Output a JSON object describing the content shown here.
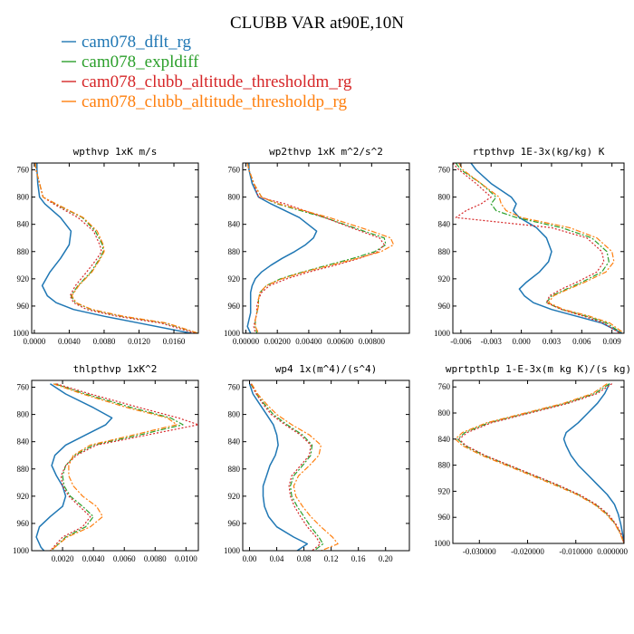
{
  "figure": {
    "title": "CLUBB VAR at90E,10N"
  },
  "colors": {
    "dflt": "#1f77b4",
    "expldiff": "#2ca02c",
    "threshm": "#d62728",
    "threshp": "#ff7f0e"
  },
  "legend": [
    {
      "name": "cam078_dflt_rg",
      "color": "#1f77b4",
      "dash": "solid"
    },
    {
      "name": "cam078_expldiff",
      "color": "#2ca02c",
      "dash": "dashdot"
    },
    {
      "name": "cam078_clubb_altitude_thresholdm_rg",
      "color": "#d62728",
      "dash": "dotted"
    },
    {
      "name": "cam078_clubb_altitude_thresholdp_rg",
      "color": "#ff7f0e",
      "dash": "dashdot"
    }
  ],
  "chart_data": [
    {
      "type": "line",
      "title": "wpthvp  1xK m/s",
      "xlim": [
        -0.0003,
        0.0188
      ],
      "ylim": [
        1000,
        750
      ],
      "y_ticks": [
        "760",
        "800",
        "840",
        "880",
        "920",
        "960",
        "1000"
      ],
      "x_ticks": [
        "0.0000",
        "0.0040",
        "0.0080",
        "0.0120",
        "0.0160"
      ],
      "levels": [
        750,
        760,
        780,
        800,
        810,
        830,
        850,
        870,
        880,
        890,
        910,
        930,
        945,
        955,
        965,
        975,
        985,
        1000
      ],
      "series": [
        {
          "name": "cam078_dflt_rg",
          "values": [
            0.0003,
            0.0003,
            0.0004,
            0.0006,
            0.0012,
            0.003,
            0.0042,
            0.004,
            0.0035,
            0.003,
            0.0018,
            0.0009,
            0.0015,
            0.0025,
            0.0045,
            0.008,
            0.012,
            0.018
          ]
        },
        {
          "name": "cam078_expldiff",
          "values": [
            0.0001,
            0.0002,
            0.0006,
            0.001,
            0.0024,
            0.0055,
            0.007,
            0.0078,
            0.0079,
            0.0075,
            0.0065,
            0.005,
            0.0042,
            0.0047,
            0.0065,
            0.01,
            0.015,
            0.0188
          ]
        },
        {
          "name": "cam078_clubb_altitude_thresholdm_rg",
          "values": [
            0.0001,
            0.0002,
            0.0006,
            0.001,
            0.0022,
            0.005,
            0.0068,
            0.0075,
            0.0077,
            0.0072,
            0.006,
            0.0047,
            0.0041,
            0.0045,
            0.006,
            0.0095,
            0.0145,
            0.0185
          ]
        },
        {
          "name": "cam078_clubb_altitude_thresholdp_rg",
          "values": [
            0.0001,
            0.0002,
            0.0006,
            0.001,
            0.0025,
            0.0056,
            0.0072,
            0.0079,
            0.008,
            0.0076,
            0.0066,
            0.0051,
            0.0043,
            0.0048,
            0.0066,
            0.0102,
            0.0152,
            0.0188
          ]
        }
      ]
    },
    {
      "type": "line",
      "title": "wp2thvp  1xK m^2/s^2",
      "xlim": [
        -0.0002,
        0.0104
      ],
      "ylim": [
        1000,
        750
      ],
      "y_ticks": [
        "760",
        "800",
        "840",
        "880",
        "920",
        "960",
        "1000"
      ],
      "x_ticks": [
        "0.00000",
        "0.00200",
        "0.00400",
        "0.00600",
        "0.00800"
      ],
      "levels": [
        750,
        760,
        780,
        800,
        810,
        830,
        850,
        860,
        870,
        880,
        890,
        900,
        910,
        920,
        930,
        940,
        950,
        960,
        970,
        980,
        990,
        1000
      ],
      "series": [
        {
          "name": "cam078_dflt_rg",
          "values": [
            0.0002,
            0.0002,
            0.0004,
            0.0008,
            0.0016,
            0.0034,
            0.0045,
            0.0043,
            0.0038,
            0.0031,
            0.0023,
            0.0016,
            0.001,
            0.0006,
            0.0004,
            0.0003,
            0.0003,
            0.0003,
            0.0003,
            0.0002,
            0.0001,
            0.0003
          ]
        },
        {
          "name": "cam078_expldiff",
          "values": [
            0.0001,
            0.0002,
            0.0005,
            0.001,
            0.002,
            0.005,
            0.0075,
            0.0088,
            0.0089,
            0.0082,
            0.0068,
            0.0052,
            0.0036,
            0.0022,
            0.0013,
            0.0009,
            0.0008,
            0.0008,
            0.0007,
            0.0006,
            0.0006,
            0.0007
          ]
        },
        {
          "name": "cam078_clubb_altitude_thresholdm_rg",
          "values": [
            0.0001,
            0.0002,
            0.0005,
            0.0008,
            0.0025,
            0.005,
            0.0073,
            0.0085,
            0.0088,
            0.0084,
            0.0072,
            0.0057,
            0.004,
            0.0026,
            0.0015,
            0.001,
            0.0008,
            0.0007,
            0.0007,
            0.0006,
            0.0005,
            0.0006
          ]
        },
        {
          "name": "cam078_clubb_altitude_thresholdp_rg",
          "values": [
            0.0001,
            0.0002,
            0.0005,
            0.001,
            0.0021,
            0.0053,
            0.008,
            0.0092,
            0.0094,
            0.0086,
            0.0071,
            0.0054,
            0.0037,
            0.0023,
            0.0013,
            0.0009,
            0.0008,
            0.0008,
            0.0007,
            0.0006,
            0.0006,
            0.0008
          ]
        }
      ]
    },
    {
      "type": "line",
      "title": "rtpthvp  1E-3x(kg/kg) K",
      "xlim": [
        -0.0068,
        0.0102
      ],
      "ylim": [
        1000,
        750
      ],
      "y_ticks": [
        "760",
        "800",
        "840",
        "880",
        "920",
        "960",
        "1000"
      ],
      "x_ticks": [
        "-0.006",
        "-0.003",
        "0.000",
        "0.003",
        "0.006",
        "0.009"
      ],
      "levels": [
        750,
        760,
        780,
        800,
        810,
        820,
        830,
        845,
        860,
        880,
        895,
        910,
        925,
        935,
        945,
        955,
        965,
        975,
        985,
        1000
      ],
      "series": [
        {
          "name": "cam078_dflt_rg",
          "values": [
            -0.005,
            -0.0045,
            -0.003,
            -0.001,
            -0.0005,
            -0.0008,
            -0.0002,
            0.0015,
            0.0025,
            0.003,
            0.0027,
            0.0018,
            0.0005,
            -0.0002,
            0.0003,
            0.0012,
            0.003,
            0.0055,
            0.008,
            0.01
          ]
        },
        {
          "name": "cam078_expldiff",
          "values": [
            -0.0065,
            -0.006,
            -0.004,
            -0.0025,
            -0.003,
            -0.0025,
            -0.0005,
            0.004,
            0.007,
            0.0085,
            0.0087,
            0.008,
            0.006,
            0.0045,
            0.003,
            0.0025,
            0.004,
            0.0065,
            0.0085,
            0.01
          ]
        },
        {
          "name": "cam078_clubb_altitude_thresholdm_rg",
          "values": [
            -0.0068,
            -0.0062,
            -0.0045,
            -0.003,
            -0.004,
            -0.0055,
            -0.0065,
            0.003,
            0.0065,
            0.008,
            0.0082,
            0.0075,
            0.0055,
            0.004,
            0.0028,
            0.0025,
            0.004,
            0.0062,
            0.0082,
            0.0098
          ]
        },
        {
          "name": "cam078_clubb_altitude_thresholdp_rg",
          "values": [
            -0.0062,
            -0.0058,
            -0.004,
            -0.0022,
            -0.002,
            -0.0015,
            0.0,
            0.0048,
            0.0075,
            0.009,
            0.0092,
            0.0084,
            0.0063,
            0.0047,
            0.0032,
            0.0027,
            0.0042,
            0.0068,
            0.0088,
            0.0102
          ]
        }
      ]
    },
    {
      "type": "line",
      "title": "thlpthvp  1xK^2",
      "xlim": [
        0.0,
        0.0108
      ],
      "ylim": [
        1000,
        750
      ],
      "y_ticks": [
        "760",
        "800",
        "840",
        "880",
        "920",
        "960",
        "1000"
      ],
      "x_ticks": [
        "0.0020",
        "0.0040",
        "0.0060",
        "0.0080",
        "0.0100"
      ],
      "levels": [
        755,
        770,
        790,
        805,
        815,
        830,
        845,
        860,
        875,
        890,
        905,
        920,
        935,
        950,
        965,
        980,
        995,
        1000
      ],
      "series": [
        {
          "name": "cam078_dflt_rg",
          "values": [
            0.0012,
            0.0022,
            0.004,
            0.0052,
            0.0048,
            0.0035,
            0.0022,
            0.0015,
            0.0013,
            0.0016,
            0.002,
            0.0022,
            0.002,
            0.0012,
            0.0005,
            0.0003,
            0.0006,
            0.0008
          ]
        },
        {
          "name": "cam078_expldiff",
          "values": [
            0.0015,
            0.0035,
            0.0065,
            0.009,
            0.0098,
            0.007,
            0.004,
            0.0028,
            0.0022,
            0.002,
            0.0021,
            0.0025,
            0.0033,
            0.004,
            0.0035,
            0.0022,
            0.0015,
            0.0013
          ]
        },
        {
          "name": "cam078_clubb_altitude_thresholdm_rg",
          "values": [
            0.0016,
            0.0038,
            0.007,
            0.0095,
            0.0108,
            0.0075,
            0.0042,
            0.0029,
            0.0022,
            0.0019,
            0.002,
            0.0024,
            0.0031,
            0.0038,
            0.0033,
            0.002,
            0.0014,
            0.0012
          ]
        },
        {
          "name": "cam078_clubb_altitude_thresholdp_rg",
          "values": [
            0.0014,
            0.0033,
            0.0062,
            0.0088,
            0.0094,
            0.0066,
            0.0038,
            0.0027,
            0.0024,
            0.0024,
            0.0027,
            0.0033,
            0.0042,
            0.0046,
            0.0038,
            0.0023,
            0.0015,
            0.0012
          ]
        }
      ]
    },
    {
      "type": "line",
      "title": "wp4  1x(m^4)/(s^4)",
      "xlim": [
        -0.01,
        0.235
      ],
      "ylim": [
        1000,
        750
      ],
      "y_ticks": [
        "760",
        "800",
        "840",
        "880",
        "920",
        "960",
        "1000"
      ],
      "x_ticks": [
        "0.00",
        "0.04",
        "0.08",
        "0.12",
        "0.16",
        "0.20"
      ],
      "levels": [
        755,
        770,
        785,
        800,
        815,
        830,
        845,
        860,
        875,
        890,
        905,
        920,
        935,
        950,
        965,
        980,
        990,
        1000
      ],
      "series": [
        {
          "name": "cam078_dflt_rg",
          "values": [
            0.0,
            0.005,
            0.015,
            0.025,
            0.035,
            0.04,
            0.042,
            0.038,
            0.03,
            0.025,
            0.02,
            0.02,
            0.022,
            0.028,
            0.04,
            0.065,
            0.085,
            0.07
          ]
        },
        {
          "name": "cam078_expldiff",
          "values": [
            0.002,
            0.01,
            0.022,
            0.035,
            0.055,
            0.078,
            0.092,
            0.09,
            0.078,
            0.065,
            0.06,
            0.062,
            0.07,
            0.08,
            0.09,
            0.102,
            0.108,
            0.095
          ]
        },
        {
          "name": "cam078_clubb_altitude_thresholdm_rg",
          "values": [
            0.002,
            0.01,
            0.02,
            0.032,
            0.052,
            0.075,
            0.09,
            0.088,
            0.075,
            0.062,
            0.058,
            0.06,
            0.066,
            0.075,
            0.085,
            0.098,
            0.104,
            0.092
          ]
        },
        {
          "name": "cam078_clubb_altitude_thresholdp_rg",
          "values": [
            0.003,
            0.012,
            0.025,
            0.04,
            0.062,
            0.088,
            0.105,
            0.102,
            0.088,
            0.072,
            0.065,
            0.068,
            0.078,
            0.09,
            0.105,
            0.122,
            0.13,
            0.105
          ]
        }
      ]
    },
    {
      "type": "line",
      "title": "wprtpthlp  1-E-3x(m kg K)/(s kg)",
      "xlim": [
        -0.0355,
        0.0
      ],
      "ylim": [
        1000,
        750
      ],
      "y_ticks": [
        "760",
        "800",
        "840",
        "880",
        "920",
        "960",
        "1000"
      ],
      "x_ticks": [
        "-0.030000",
        "-0.020000",
        "-0.010000",
        "0.000000"
      ],
      "levels": [
        755,
        770,
        785,
        800,
        815,
        830,
        840,
        850,
        865,
        880,
        895,
        910,
        925,
        940,
        955,
        970,
        985,
        1000
      ],
      "series": [
        {
          "name": "cam078_dflt_rg",
          "values": [
            -0.003,
            -0.004,
            -0.0055,
            -0.0075,
            -0.0095,
            -0.012,
            -0.0125,
            -0.012,
            -0.011,
            -0.0095,
            -0.0075,
            -0.0055,
            -0.0035,
            -0.002,
            -0.0012,
            -0.0007,
            -0.0003,
            0.0
          ]
        },
        {
          "name": "cam078_expldiff",
          "values": [
            -0.003,
            -0.006,
            -0.012,
            -0.02,
            -0.028,
            -0.033,
            -0.0345,
            -0.033,
            -0.029,
            -0.024,
            -0.019,
            -0.014,
            -0.0095,
            -0.006,
            -0.0035,
            -0.0018,
            -0.0007,
            0.0
          ]
        },
        {
          "name": "cam078_clubb_altitude_thresholdm_rg",
          "values": [
            -0.0025,
            -0.0055,
            -0.0115,
            -0.0195,
            -0.0275,
            -0.0325,
            -0.0342,
            -0.0328,
            -0.0288,
            -0.0238,
            -0.0188,
            -0.0138,
            -0.0093,
            -0.0058,
            -0.0033,
            -0.0017,
            -0.0006,
            0.0
          ]
        },
        {
          "name": "cam078_clubb_altitude_thresholdp_rg",
          "values": [
            -0.0035,
            -0.0065,
            -0.0125,
            -0.0205,
            -0.0285,
            -0.0335,
            -0.035,
            -0.0335,
            -0.0295,
            -0.0245,
            -0.0195,
            -0.0145,
            -0.0098,
            -0.0062,
            -0.0037,
            -0.0019,
            -0.0008,
            0.0
          ]
        }
      ]
    }
  ]
}
